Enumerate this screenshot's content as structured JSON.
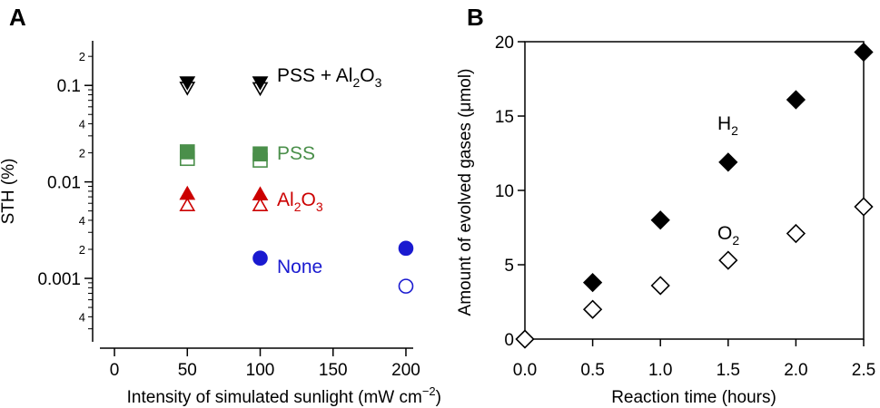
{
  "chart_data": [
    {
      "panel": "A",
      "type": "scatter",
      "xlabel": "Intensity of simulated sunlight (mW cm",
      "xlabel_sup": "−2",
      "xlabel_close": ")",
      "ylabel": "STH (%)",
      "xlim": [
        -10,
        205
      ],
      "ylim": [
        0.00022,
        0.29
      ],
      "yscale": "log",
      "x_ticks": [
        0,
        50,
        100,
        150,
        200
      ],
      "x_tick_labels": [
        "0",
        "50",
        "100",
        "150",
        "200"
      ],
      "y_major_ticks": [
        0.001,
        0.01,
        0.1
      ],
      "y_major_labels": [
        "0.001",
        "0.01",
        "0.1"
      ],
      "y_minor_labeled": [
        {
          "value": 0.0004,
          "label": "4"
        },
        {
          "value": 0.002,
          "label": "2"
        },
        {
          "value": 0.004,
          "label": "4"
        },
        {
          "value": 0.02,
          "label": "2"
        },
        {
          "value": 0.04,
          "label": "4"
        },
        {
          "value": 0.2,
          "label": "2"
        }
      ],
      "series": [
        {
          "name": "PSS + Al2O3",
          "label_parts": [
            {
              "t": "PSS + Al"
            },
            {
              "t": "2",
              "sub": true
            },
            {
              "t": "O"
            },
            {
              "t": "3",
              "sub": true
            }
          ],
          "color": "#000000",
          "marker_filled": "triangle-down",
          "marker_open": "triangle-down",
          "filled": [
            {
              "x": 50,
              "y": 0.108
            },
            {
              "x": 100,
              "y": 0.108
            }
          ],
          "open": [
            {
              "x": 50,
              "y": 0.095
            },
            {
              "x": 100,
              "y": 0.094
            }
          ]
        },
        {
          "name": "PSS",
          "label_parts": [
            {
              "t": "PSS"
            }
          ],
          "color": "#4a8f4a",
          "marker_filled": "square",
          "marker_open": "square",
          "filled": [
            {
              "x": 50,
              "y": 0.0205
            },
            {
              "x": 100,
              "y": 0.0195
            }
          ],
          "open": [
            {
              "x": 50,
              "y": 0.0175
            },
            {
              "x": 100,
              "y": 0.0168
            }
          ]
        },
        {
          "name": "Al2O3",
          "label_parts": [
            {
              "t": "Al"
            },
            {
              "t": "2",
              "sub": true
            },
            {
              "t": "O"
            },
            {
              "t": "3",
              "sub": true
            }
          ],
          "color": "#cc0000",
          "marker_filled": "triangle-up",
          "marker_open": "triangle-up",
          "filled": [
            {
              "x": 50,
              "y": 0.0075
            },
            {
              "x": 100,
              "y": 0.0074
            }
          ],
          "open": [
            {
              "x": 50,
              "y": 0.0057
            },
            {
              "x": 100,
              "y": 0.0057
            }
          ]
        },
        {
          "name": "None",
          "label_parts": [
            {
              "t": "None"
            }
          ],
          "color": "#1a1ad0",
          "marker_filled": "circle",
          "marker_open": "circle",
          "filled": [
            {
              "x": 100,
              "y": 0.00162
            },
            {
              "x": 200,
              "y": 0.00205
            }
          ],
          "open": [
            {
              "x": 200,
              "y": 0.00083
            }
          ]
        }
      ]
    },
    {
      "panel": "B",
      "type": "scatter",
      "xlabel": "Reaction time (hours)",
      "ylabel": "Amount of evolved gases (μmol)",
      "xlim": [
        0,
        2.5
      ],
      "ylim": [
        0,
        20
      ],
      "x_ticks": [
        0.0,
        0.5,
        1.0,
        1.5,
        2.0,
        2.5
      ],
      "x_tick_labels": [
        "0.0",
        "0.5",
        "1.0",
        "1.5",
        "2.0",
        "2.5"
      ],
      "y_ticks": [
        0,
        5,
        10,
        15,
        20
      ],
      "y_tick_labels": [
        "0",
        "5",
        "10",
        "15",
        "20"
      ],
      "series": [
        {
          "name": "H2",
          "label_parts": [
            {
              "t": "H"
            },
            {
              "t": "2",
              "sub": true
            }
          ],
          "filled": true,
          "color": "#000000",
          "x": [
            0.5,
            1.0,
            1.5,
            2.0,
            2.5
          ],
          "y": [
            3.8,
            8.0,
            11.9,
            16.1,
            19.3
          ]
        },
        {
          "name": "O2",
          "label_parts": [
            {
              "t": "O"
            },
            {
              "t": "2",
              "sub": true
            }
          ],
          "filled": false,
          "color": "#000000",
          "x": [
            0.0,
            0.5,
            1.0,
            1.5,
            2.0,
            2.5
          ],
          "y": [
            0.0,
            2.0,
            3.6,
            5.3,
            7.1,
            8.9
          ]
        }
      ]
    }
  ]
}
